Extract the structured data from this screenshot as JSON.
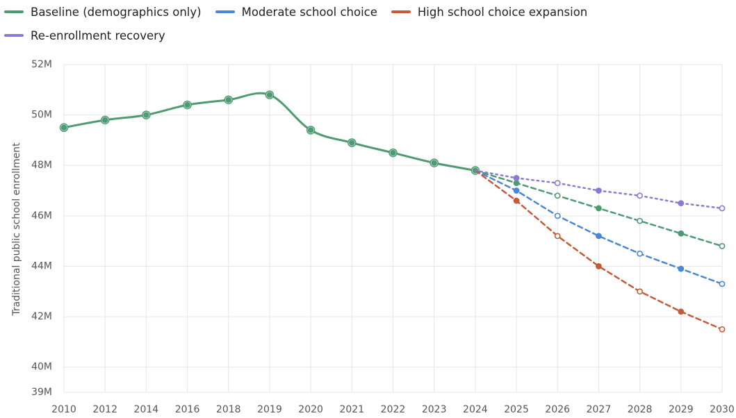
{
  "chart_data": {
    "type": "line",
    "y_label": "Traditional public school enrollment",
    "categories": [
      "2010",
      "2012",
      "2014",
      "2016",
      "2018",
      "2019",
      "2020",
      "2021",
      "2022",
      "2023",
      "2024",
      "2025",
      "2026",
      "2027",
      "2028",
      "2029",
      "2030"
    ],
    "series": [
      {
        "name": "Baseline (demographics only)",
        "color": "#4e9a72",
        "dash": "solid",
        "values": [
          49.5,
          49.8,
          50.0,
          50.4,
          50.6,
          50.8,
          49.4,
          48.9,
          48.5,
          48.1,
          47.8,
          47.3,
          46.8,
          46.3,
          45.8,
          45.3,
          44.8
        ]
      },
      {
        "name": "Moderate school choice",
        "color": "#4a86d4",
        "dash": "dashed",
        "values": [
          null,
          null,
          null,
          null,
          null,
          null,
          null,
          null,
          null,
          null,
          47.8,
          47.0,
          46.0,
          45.2,
          44.5,
          43.9,
          43.3
        ]
      },
      {
        "name": "High school choice expansion",
        "color": "#c65a38",
        "dash": "dashed",
        "values": [
          null,
          null,
          null,
          null,
          null,
          null,
          null,
          null,
          null,
          null,
          47.8,
          46.6,
          45.2,
          44.0,
          43.0,
          42.2,
          41.5
        ]
      },
      {
        "name": "Re-enrollment recovery",
        "color": "#8a7ad6",
        "dash": "dotted",
        "values": [
          null,
          null,
          null,
          null,
          null,
          null,
          null,
          null,
          null,
          null,
          47.8,
          47.5,
          47.3,
          47.0,
          46.8,
          46.5,
          46.3
        ]
      }
    ],
    "ylim": [
      39,
      52
    ],
    "yticks": [
      {
        "value": 39,
        "label": "39M"
      },
      {
        "value": 40,
        "label": "40M"
      },
      {
        "value": 42,
        "label": "42M"
      },
      {
        "value": 44,
        "label": "44M"
      },
      {
        "value": 46,
        "label": "46M"
      },
      {
        "value": 48,
        "label": "48M"
      },
      {
        "value": 50,
        "label": "50M"
      },
      {
        "value": 52,
        "label": "52M"
      }
    ],
    "grid": true,
    "legend": "top"
  }
}
